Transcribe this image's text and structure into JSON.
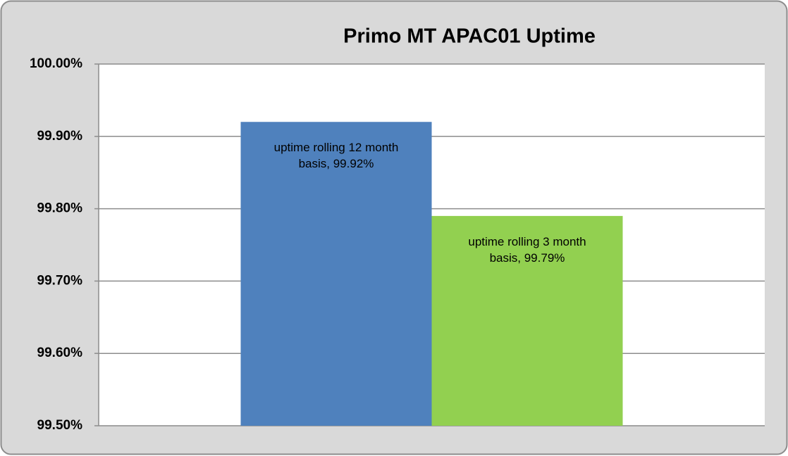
{
  "chart_data": {
    "type": "bar",
    "title": "Primo MT APAC01 Uptime",
    "series": [
      {
        "color": "#4f81bd",
        "values": [
          99.92
        ],
        "value_labels": [
          "uptime rolling 12 month basis, 99.92%"
        ]
      },
      {
        "color": "#92d050",
        "values": [
          99.79
        ],
        "value_labels": [
          "uptime rolling 3 month basis, 99.79%"
        ]
      }
    ],
    "ylim": [
      99.5,
      100
    ],
    "yticks": [
      {
        "value": 99.5,
        "label": "99.50%"
      },
      {
        "value": 99.6,
        "label": "99.60%"
      },
      {
        "value": 99.7,
        "label": "99.70%"
      },
      {
        "value": 99.8,
        "label": "99.80%"
      },
      {
        "value": 99.9,
        "label": "99.90%"
      },
      {
        "value": 100,
        "label": "100.00%"
      }
    ],
    "grid": true
  }
}
